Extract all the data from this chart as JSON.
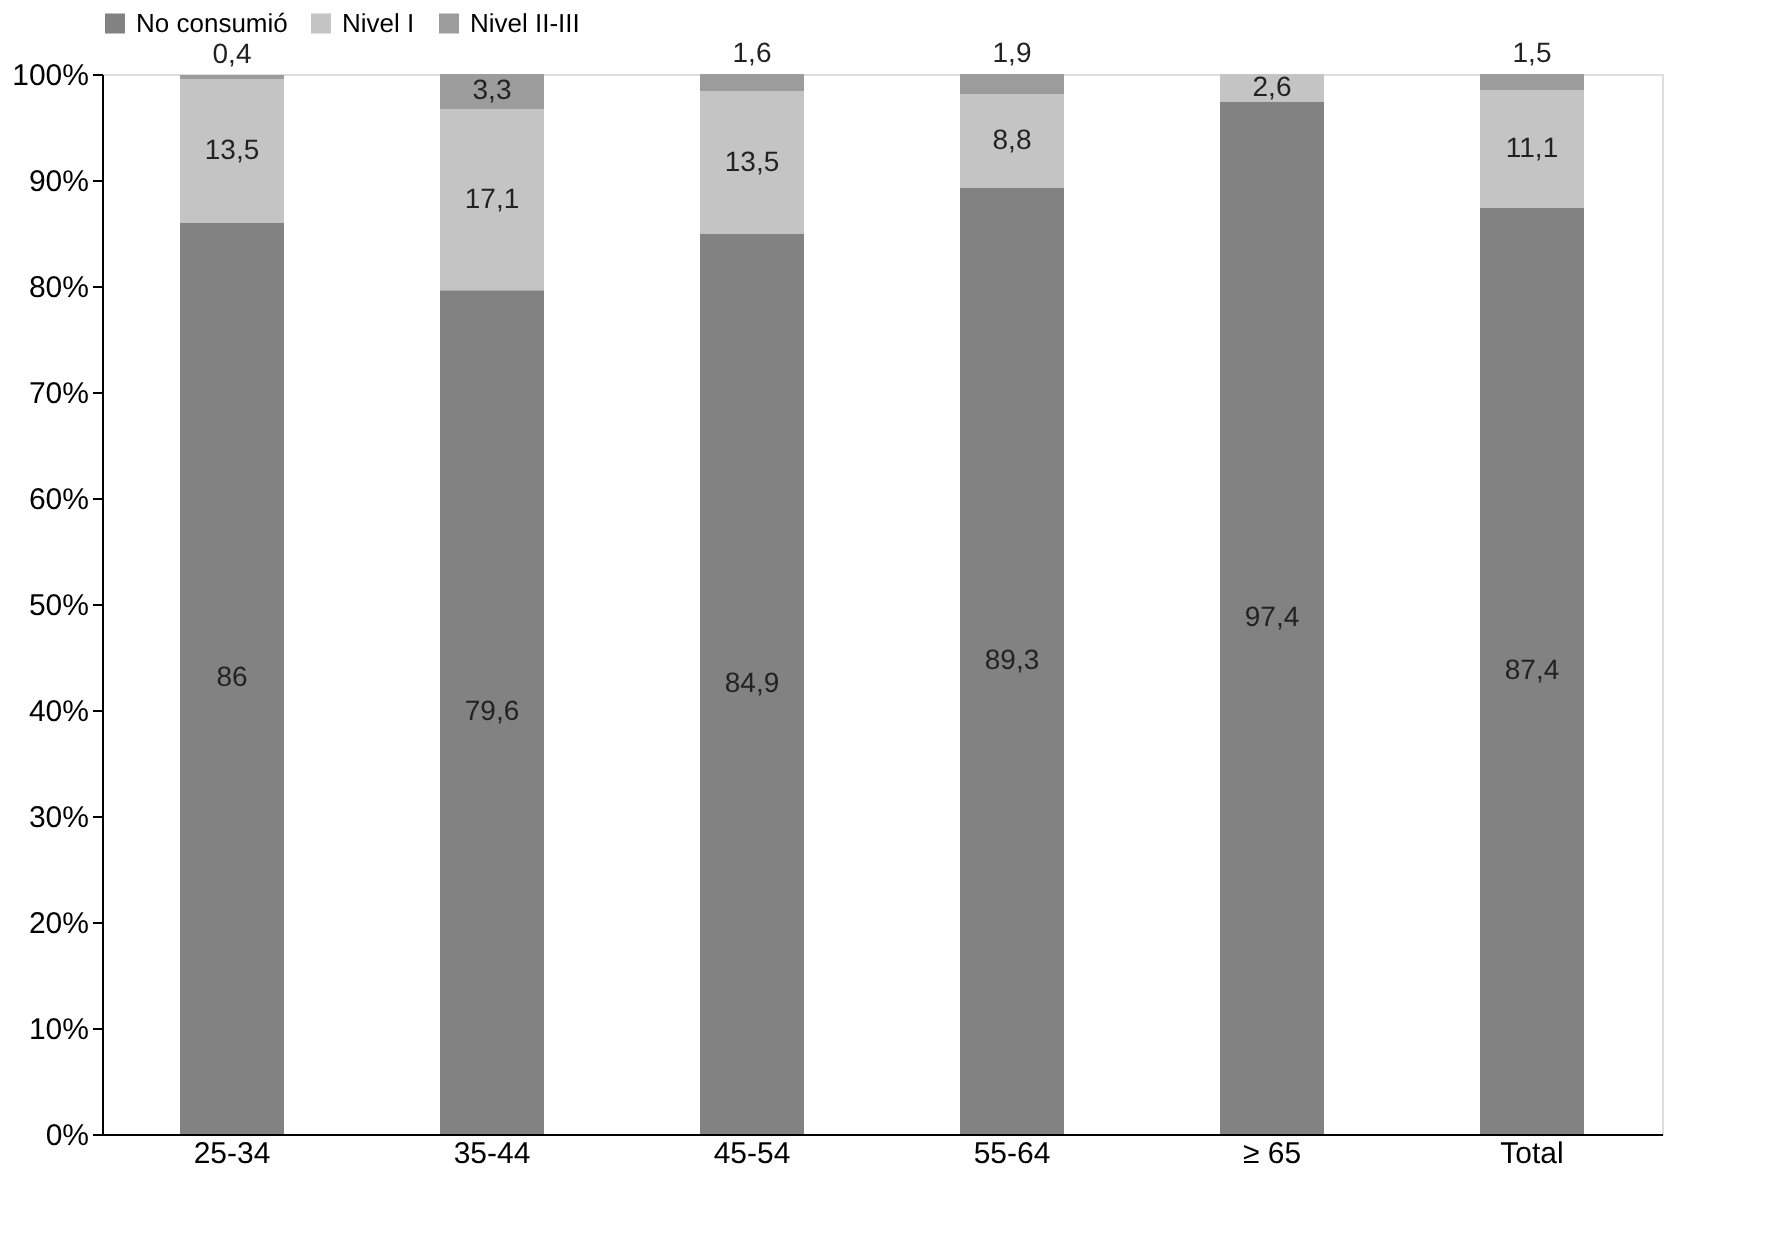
{
  "chart_data": {
    "type": "bar",
    "stacked": true,
    "categories": [
      "25-34",
      "35-44",
      "45-54",
      "55-64",
      "≥ 65",
      "Total"
    ],
    "series": [
      {
        "name": "No consumió",
        "color": "#828282",
        "values": [
          86,
          79.6,
          84.9,
          89.3,
          97.4,
          87.4
        ],
        "value_labels": [
          "86",
          "79,6",
          "84,9",
          "89,3",
          "97,4",
          "87,4"
        ]
      },
      {
        "name": "Nivel I",
        "color": "#c4c4c4",
        "values": [
          13.5,
          17.1,
          13.5,
          8.8,
          2.6,
          11.1
        ],
        "value_labels": [
          "13,5",
          "17,1",
          "13,5",
          "8,8",
          "2,6",
          "11,1"
        ]
      },
      {
        "name": "Nivel II-III",
        "color": "#9c9c9c",
        "values": [
          0.4,
          3.3,
          1.6,
          1.9,
          null,
          1.5
        ],
        "value_labels": [
          "0,4",
          "3,3",
          "1,6",
          "1,9",
          null,
          "1,5"
        ]
      }
    ],
    "ylim": [
      0,
      100
    ],
    "yticks": [
      {
        "value": 0,
        "label": "0%"
      },
      {
        "value": 10,
        "label": "10%"
      },
      {
        "value": 20,
        "label": "20%"
      },
      {
        "value": 30,
        "label": "30%"
      },
      {
        "value": 40,
        "label": "40%"
      },
      {
        "value": 50,
        "label": "50%"
      },
      {
        "value": 60,
        "label": "60%"
      },
      {
        "value": 70,
        "label": "70%"
      },
      {
        "value": 80,
        "label": "80%"
      },
      {
        "value": 90,
        "label": "90%"
      },
      {
        "value": 100,
        "label": "100%"
      }
    ],
    "legend": "top",
    "grid": false
  }
}
